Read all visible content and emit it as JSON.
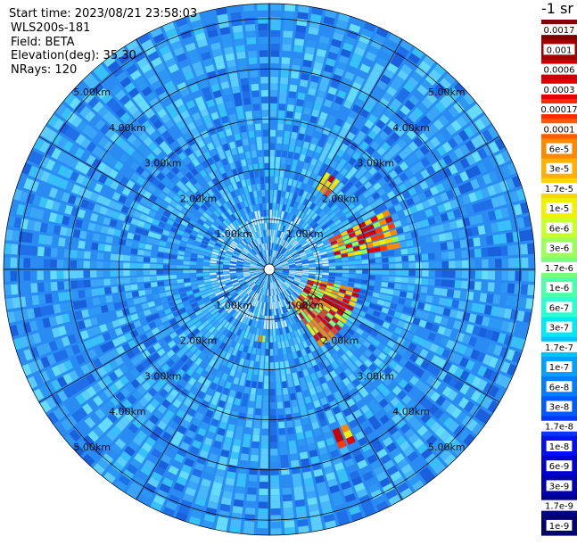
{
  "header": {
    "start_time": "Start time: 2023/08/21 23:58:03",
    "instrument": "WLS200s-181",
    "field": "Field: BETA",
    "elevation": "Elevation(deg): 35.30",
    "nrays": "NRays: 120"
  },
  "colorbar": {
    "title": "-1 sr",
    "labels": [
      "0.0017",
      "0.001",
      "0.0006",
      "0.0003",
      "0.00017",
      "0.0001",
      "6e-5",
      "3e-5",
      "1.7e-5",
      "1e-5",
      "6e-6",
      "3e-6",
      "1.7e-6",
      "1e-6",
      "6e-7",
      "3e-7",
      "1.7e-7",
      "1e-7",
      "6e-8",
      "3e-8",
      "1.7e-8",
      "1e-8",
      "6e-9",
      "3e-9",
      "1.7e-9",
      "1e-9"
    ],
    "colors": [
      "#7f0000",
      "#a00000",
      "#c80000",
      "#e60000",
      "#ff2a00",
      "#ff5a00",
      "#ff8800",
      "#ffb000",
      "#ffd400",
      "#f0f000",
      "#c8ff2e",
      "#9cff5a",
      "#74ff83",
      "#4dffaa",
      "#2effd0",
      "#00e8f0",
      "#00c4ff",
      "#00a0ff",
      "#007cff",
      "#0058ff",
      "#0034ff",
      "#0010f0",
      "#0000d0",
      "#0000b0",
      "#000090",
      "#000070"
    ]
  },
  "chart_data": {
    "type": "heatmap",
    "projection": "polar PPI scan",
    "field": "BETA",
    "nrays": 120,
    "range_max_km": 5.3,
    "range_rings_km": [
      1.0,
      2.0,
      3.0,
      4.0,
      5.0
    ],
    "ring_labels": [
      "1.00km",
      "2.00km",
      "3.00km",
      "4.00km",
      "5.00km"
    ],
    "spoke_angles_deg": [
      0,
      30,
      60,
      90,
      120,
      150,
      180,
      210,
      240,
      270,
      300,
      330
    ],
    "colorscale": "log, 1e-9 to 0.0017",
    "background_beta": "1e-7 to 1e-8 (blue/cyan)",
    "high_echo_regions": [
      {
        "azimuth_deg": [
          30,
          38
        ],
        "range_km": [
          1.8,
          2.3
        ],
        "beta": "1e-5 to 0.0017"
      },
      {
        "azimuth_deg": [
          62,
          80
        ],
        "range_km": [
          1.3,
          2.6
        ],
        "beta": "1e-5 to 0.0017"
      },
      {
        "azimuth_deg": [
          103,
          148
        ],
        "range_km": [
          0.8,
          1.9
        ],
        "beta": "1e-5 to 0.0017"
      },
      {
        "azimuth_deg": [
          183,
          188
        ],
        "range_km": [
          1.3,
          1.4
        ],
        "beta": "1e-5 to 0.0001"
      },
      {
        "azimuth_deg": [
          154,
          160
        ],
        "range_km": [
          3.4,
          3.8
        ],
        "beta": "1e-6 to 1e-5"
      }
    ]
  }
}
